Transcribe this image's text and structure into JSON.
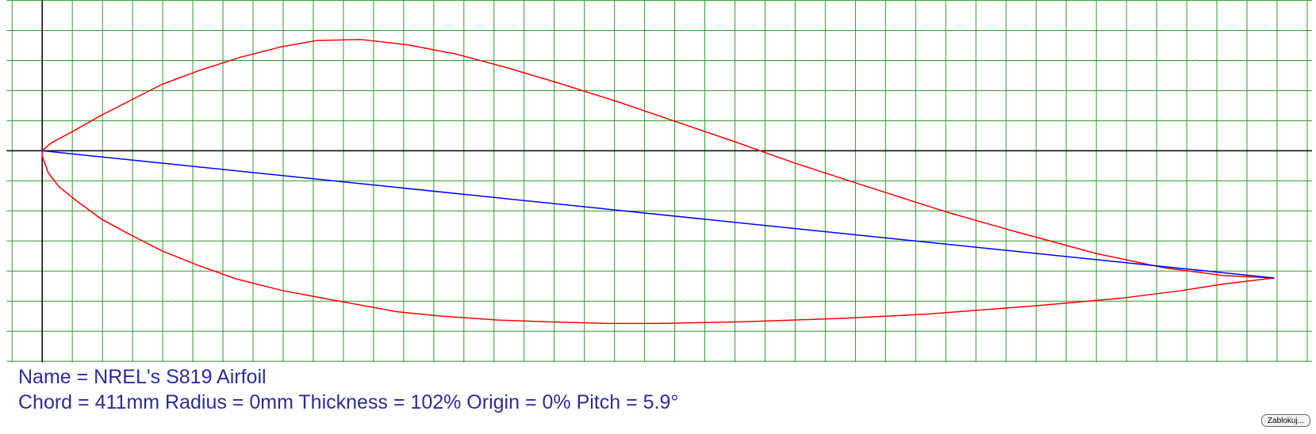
{
  "chart_data": {
    "type": "line",
    "xlim": [
      -1.18,
      42.16
    ],
    "ylim": [
      -7.03,
      5.01
    ],
    "xticks": [
      -1,
      0,
      1,
      2,
      3,
      4,
      5,
      6,
      7,
      8,
      9,
      10,
      11,
      12,
      13,
      14,
      15,
      16,
      17,
      18,
      19,
      20,
      21,
      22,
      23,
      24,
      25,
      26,
      27,
      28,
      29,
      30,
      31,
      32,
      33,
      34,
      35,
      36,
      37,
      38,
      39,
      40,
      41,
      42
    ],
    "yticks": [
      -7,
      -6,
      -5,
      -4,
      -3,
      -2,
      -1,
      0,
      1,
      2,
      3,
      4,
      5
    ],
    "grid": true,
    "grid_color": "#2f9a2f",
    "axis_color": "#000000",
    "series": [
      {
        "color": "#ff0000",
        "x": [
          0,
          0.28,
          1.06,
          1.96,
          2.94,
          3.98,
          5.18,
          6.58,
          7.9,
          9.13,
          10.59,
          12.1,
          13.73,
          15.41,
          17.09,
          19.05,
          21.01,
          22.97,
          24.93,
          27.17,
          29.97,
          32.21,
          35.01,
          37.25,
          39.22,
          40.9,
          39.22,
          37.82,
          35.85,
          33.05,
          29.41,
          26.61,
          23.25,
          20.45,
          18.77,
          16.81,
          15.13,
          13.17,
          11.76,
          9.8,
          7.98,
          6.44,
          5.18,
          3.98,
          2.94,
          1.96,
          1.12,
          0.56,
          0.2,
          0,
          0
        ],
        "values": [
          0,
          0.25,
          0.67,
          1.18,
          1.68,
          2.21,
          2.66,
          3.11,
          3.45,
          3.67,
          3.7,
          3.53,
          3.22,
          2.77,
          2.27,
          1.65,
          0.98,
          0.31,
          -0.39,
          -1.12,
          -2.02,
          -2.66,
          -3.42,
          -3.89,
          -4.15,
          -4.23,
          -4.43,
          -4.65,
          -4.9,
          -5.15,
          -5.43,
          -5.57,
          -5.69,
          -5.74,
          -5.74,
          -5.69,
          -5.63,
          -5.49,
          -5.35,
          -4.99,
          -4.65,
          -4.26,
          -3.81,
          -3.33,
          -2.8,
          -2.27,
          -1.65,
          -1.2,
          -0.73,
          -0.17,
          0
        ]
      },
      {
        "color": "#0000ff",
        "x": [
          0,
          40.9
        ],
        "values": [
          0,
          -4.23
        ]
      }
    ]
  },
  "info": {
    "name": "Name = NREL's S819 Airfoil",
    "params": "Chord = 411mm Radius = 0mm Thickness = 102% Origin = 0% Pitch = 5.9°"
  },
  "button": "Zablokuj..."
}
